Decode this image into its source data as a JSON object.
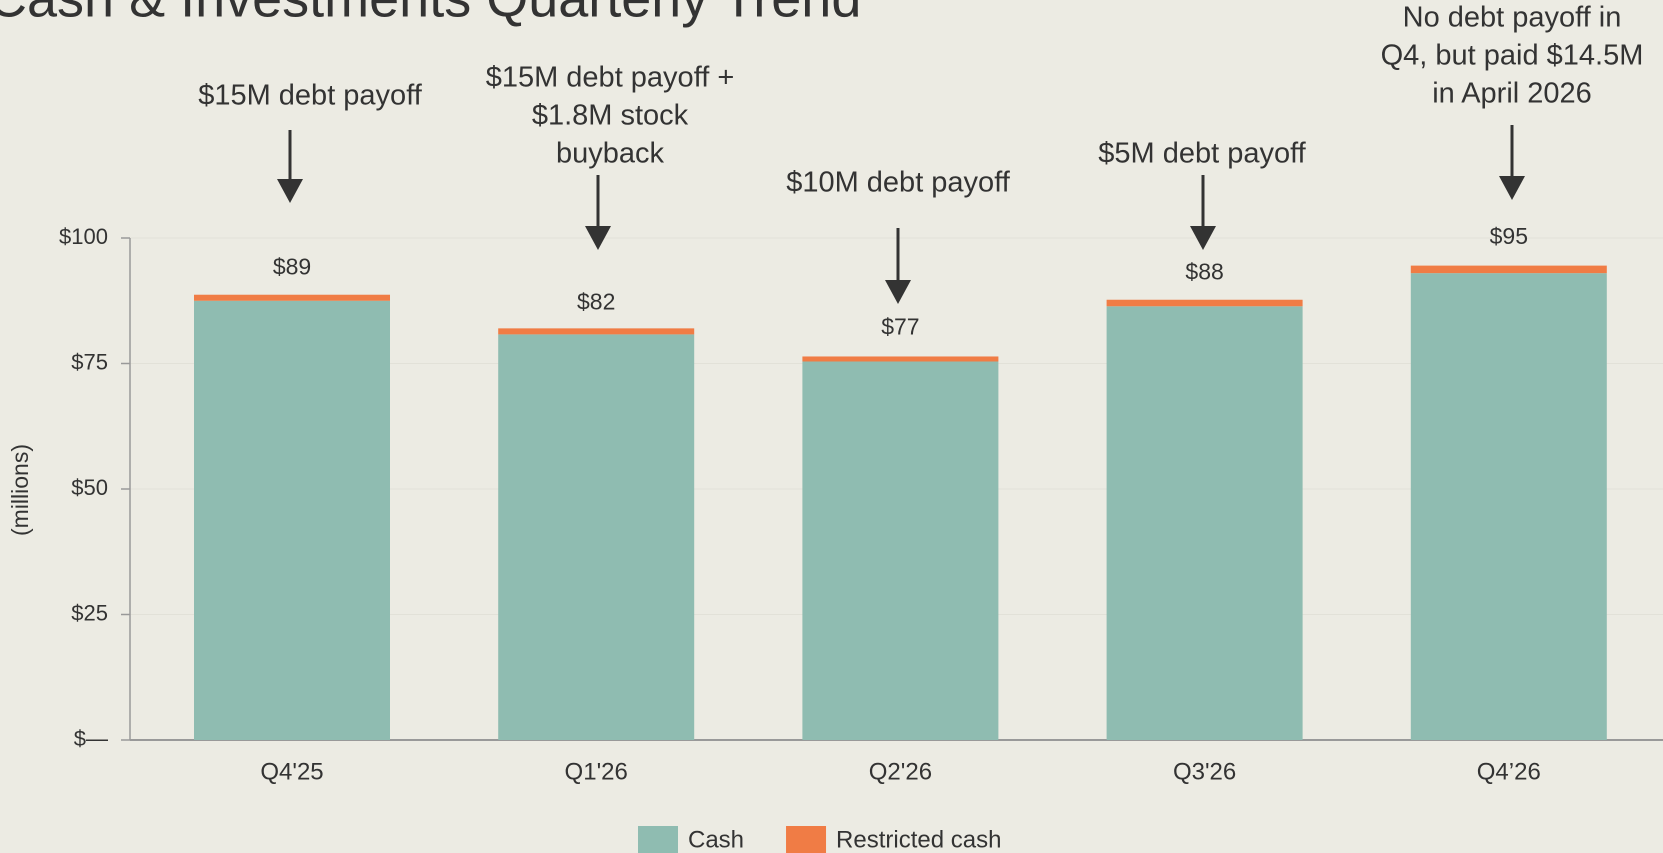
{
  "chart_data": {
    "type": "stacked_bar",
    "title": "Cash & Investments Quarterly Trend",
    "y_label": "(millions)",
    "categories": [
      "Q4'25",
      "Q1'26",
      "Q2'26",
      "Q3'26",
      "Q4’26"
    ],
    "series": [
      {
        "name": "Cash",
        "color": "#8fbcb1",
        "values": [
          87.5,
          80.8,
          75.4,
          86.4,
          93.0
        ]
      },
      {
        "name": "Restricted cash",
        "color": "#f07c45",
        "values": [
          1.2,
          1.2,
          1.0,
          1.3,
          1.5
        ]
      }
    ],
    "totals": [
      89,
      82,
      77,
      88,
      95
    ],
    "total_labels": [
      "$89",
      "$82",
      "$77",
      "$88",
      "$95"
    ],
    "ylim": [
      0,
      100
    ],
    "yticks": [
      {
        "value": 0,
        "label": "$—"
      },
      {
        "value": 25,
        "label": "$25"
      },
      {
        "value": 50,
        "label": "$50"
      },
      {
        "value": 75,
        "label": "$75"
      },
      {
        "value": 100,
        "label": "$100"
      }
    ],
    "grid": true,
    "legend": "bottom",
    "annotations": [
      {
        "category": 0,
        "lines": [
          "$15M debt payoff"
        ]
      },
      {
        "category": 1,
        "lines": [
          "$15M debt payoff +",
          "$1.8M stock",
          "buyback"
        ]
      },
      {
        "category": 2,
        "lines": [
          "$10M debt payoff"
        ]
      },
      {
        "category": 3,
        "lines": [
          "$5M debt payoff"
        ]
      },
      {
        "category": 4,
        "lines": [
          "No debt payoff in",
          "Q4, but paid $14.5M",
          "in April 2026"
        ]
      }
    ]
  }
}
